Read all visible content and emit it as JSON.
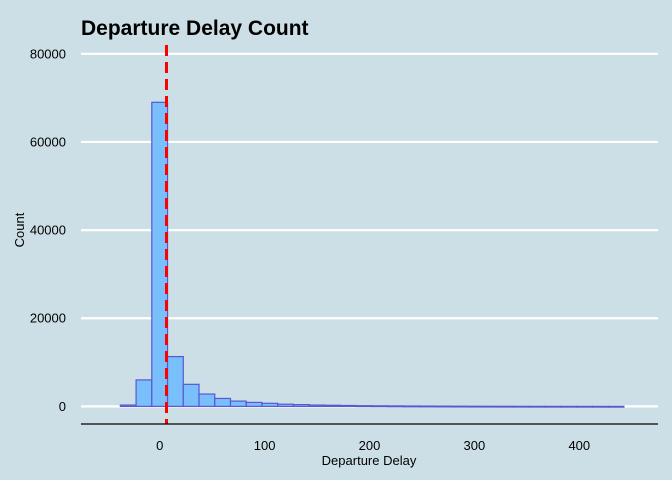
{
  "chart_data": {
    "type": "bar",
    "title": "Departure Delay Count",
    "xlabel": "Departure Delay",
    "ylabel": "Count",
    "xlim": [
      -75,
      475
    ],
    "ylim": [
      -4000,
      82000
    ],
    "x_ticks": [
      0,
      100,
      200,
      300,
      400
    ],
    "y_ticks": [
      0,
      20000,
      40000,
      60000,
      80000
    ],
    "grid": "horizontal",
    "reference_line": {
      "x": 6.5,
      "style": "dashed"
    },
    "bins": {
      "start": -37.5,
      "width": 15,
      "counts": [
        300,
        6000,
        69000,
        11300,
        5000,
        2800,
        1800,
        1200,
        900,
        700,
        500,
        400,
        300,
        250,
        200,
        150,
        130,
        110,
        90,
        80,
        70,
        60,
        50,
        45,
        40,
        35,
        30,
        28,
        25,
        22,
        20,
        18
      ]
    },
    "colors": {
      "background": "#cddfe6",
      "bar_fill": "#79bffb",
      "bar_stroke": "#5a56d2",
      "grid": "#ffffff",
      "reference_line": "#ff0000",
      "axis": "#000000"
    }
  }
}
